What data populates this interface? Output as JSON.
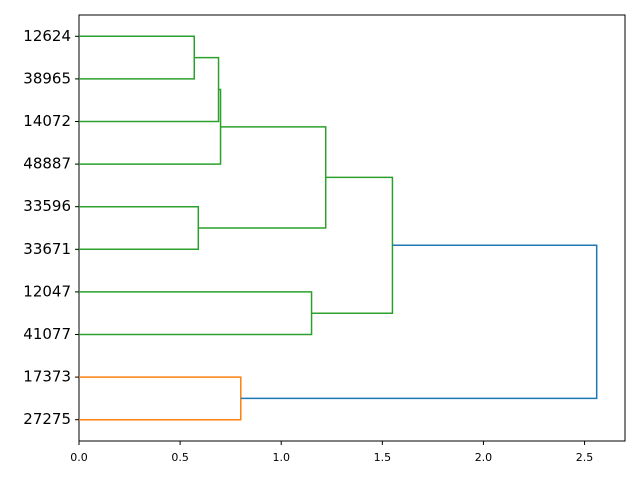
{
  "chart_data": {
    "type": "dendrogram",
    "orientation": "right",
    "leaves": [
      "12624",
      "38965",
      "14072",
      "48887",
      "33596",
      "33671",
      "12047",
      "41077",
      "17373",
      "27275"
    ],
    "merges": [
      {
        "children": [
          0,
          1
        ],
        "height": 0.57,
        "color": "#2ca02c"
      },
      {
        "children": [
          10,
          2
        ],
        "height": 0.69,
        "color": "#2ca02c"
      },
      {
        "children": [
          11,
          3
        ],
        "height": 0.7,
        "color": "#2ca02c"
      },
      {
        "children": [
          4,
          5
        ],
        "height": 0.59,
        "color": "#2ca02c"
      },
      {
        "children": [
          12,
          13
        ],
        "height": 1.22,
        "color": "#2ca02c"
      },
      {
        "children": [
          6,
          7
        ],
        "height": 1.15,
        "color": "#2ca02c"
      },
      {
        "children": [
          14,
          15
        ],
        "height": 1.55,
        "color": "#2ca02c"
      },
      {
        "children": [
          8,
          9
        ],
        "height": 0.8,
        "color": "#ff7f0e"
      },
      {
        "children": [
          16,
          17
        ],
        "height": 2.56,
        "color": "#1f77b4"
      }
    ],
    "xlim": [
      0,
      2.7
    ],
    "xticks": [
      {
        "value": 0,
        "label": "0.0"
      },
      {
        "value": 0.5,
        "label": "0.5"
      },
      {
        "value": 1,
        "label": "1.0"
      },
      {
        "value": 1.5,
        "label": "1.5"
      },
      {
        "value": 2,
        "label": "2.0"
      },
      {
        "value": 2.5,
        "label": "2.5"
      }
    ]
  }
}
